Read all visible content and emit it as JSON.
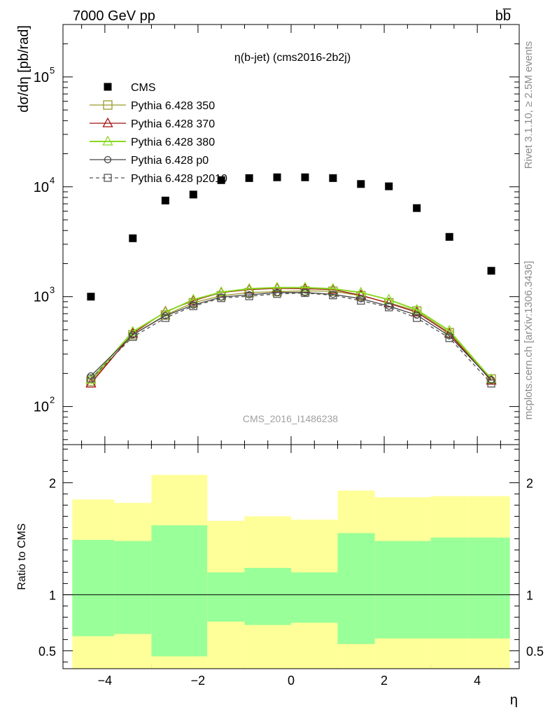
{
  "header": {
    "left": "7000 GeV pp",
    "right": "bb̅"
  },
  "side_labels": {
    "rivet": "Rivet 3.1.10, ≥ 2.5M events",
    "url": "mcplots.cern.ch [arXiv:1306.3436]"
  },
  "colors": {
    "cms": "#000000",
    "p350": "#9a9a2a",
    "p370": "#a01010",
    "p380": "#88d820",
    "p0": "#444444",
    "p2010": "#555555",
    "band_outer": "#ffff99",
    "band_inner": "#99ff99"
  },
  "chart_data": [
    {
      "type": "scatter",
      "title": "η(b-jet) (cms2016-2b2j)",
      "ylabel": "dσ/dη [pb/rad]",
      "watermark": "CMS_2016_I1486238",
      "yscale": "log",
      "xlim": [
        -4.9,
        4.9
      ],
      "ylim": [
        45,
        300000
      ],
      "y_ticks": [
        "10",
        "10",
        "10",
        "10"
      ],
      "y_tick_exps": [
        "2",
        "3",
        "4",
        "5"
      ],
      "y_tick_values": [
        100,
        1000,
        10000,
        100000
      ],
      "legend_position": "top-left",
      "x": [
        -4.3,
        -3.4,
        -2.7,
        -2.1,
        -1.5,
        -0.9,
        -0.3,
        0.3,
        0.9,
        1.5,
        2.1,
        2.7,
        3.4,
        4.3
      ],
      "series": [
        {
          "name": "CMS",
          "marker": "filled-square",
          "values": [
            1000,
            3400,
            7500,
            8500,
            11500,
            12000,
            12200,
            12200,
            12000,
            10600,
            10100,
            6400,
            3500,
            1720
          ]
        },
        {
          "name": "Pythia 6.428 350",
          "marker": "open-square",
          "values": [
            170,
            450,
            680,
            880,
            1020,
            1090,
            1110,
            1130,
            1120,
            1020,
            880,
            740,
            470,
            178
          ]
        },
        {
          "name": "Pythia 6.428 370",
          "marker": "open-triangle",
          "values": [
            162,
            462,
            730,
            920,
            1090,
            1160,
            1190,
            1180,
            1160,
            1030,
            870,
            720,
            460,
            172
          ]
        },
        {
          "name": "Pythia 6.428 380",
          "marker": "open-triangle",
          "values": [
            176,
            480,
            720,
            940,
            1100,
            1180,
            1210,
            1210,
            1180,
            1090,
            940,
            760,
            490,
            178
          ]
        },
        {
          "name": "Pythia 6.428 p0",
          "marker": "open-circle",
          "values": [
            190,
            450,
            670,
            840,
            990,
            1040,
            1090,
            1090,
            1050,
            960,
            820,
            680,
            440,
            175
          ]
        },
        {
          "name": "Pythia 6.428 p2010",
          "marker": "open-square-dashed",
          "values": [
            180,
            430,
            640,
            820,
            970,
            1010,
            1060,
            1080,
            1030,
            920,
            800,
            640,
            420,
            162
          ]
        }
      ]
    },
    {
      "type": "area",
      "xlabel": "η",
      "ylabel": "Ratio to CMS",
      "xlim": [
        -4.9,
        4.9
      ],
      "ylim": [
        0.34,
        2.34
      ],
      "x_ticks": [
        "−4",
        "−2",
        "0",
        "2",
        "4"
      ],
      "x_tick_values": [
        -4,
        -2,
        0,
        2,
        4
      ],
      "y_ticks": [
        "0.5",
        "1",
        "2"
      ],
      "y_tick_values": [
        0.5,
        1,
        2
      ],
      "reference_line": 1,
      "bin_edges": [
        -4.7,
        -3.8,
        -3.0,
        -1.8,
        -1.0,
        0.0,
        1.0,
        1.8,
        3.0,
        3.8,
        4.7
      ],
      "outer_band": {
        "upper": [
          1.85,
          1.82,
          2.07,
          1.66,
          1.7,
          1.67,
          1.93,
          1.87,
          1.88,
          1.88
        ],
        "lower": [
          0.15,
          0.18,
          0.0,
          0.34,
          0.3,
          0.33,
          0.07,
          0.12,
          0.12,
          0.12
        ]
      },
      "inner_band": {
        "upper": [
          1.49,
          1.48,
          1.62,
          1.2,
          1.24,
          1.2,
          1.55,
          1.48,
          1.51,
          1.51
        ],
        "lower": [
          0.63,
          0.65,
          0.45,
          0.76,
          0.73,
          0.75,
          0.56,
          0.61,
          0.61,
          0.61
        ]
      }
    }
  ]
}
